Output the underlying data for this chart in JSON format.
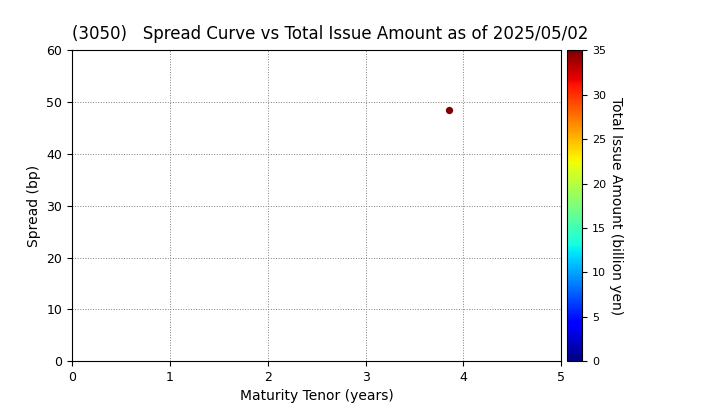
{
  "title": "(3050)   Spread Curve vs Total Issue Amount as of 2025/05/02",
  "xlabel": "Maturity Tenor (years)",
  "ylabel": "Spread (bp)",
  "colorbar_label": "Total Issue Amount (billion yen)",
  "xlim": [
    0,
    5
  ],
  "ylim": [
    0,
    60
  ],
  "xticks": [
    0,
    1,
    2,
    3,
    4,
    5
  ],
  "yticks": [
    0,
    10,
    20,
    30,
    40,
    50,
    60
  ],
  "colorbar_min": 0,
  "colorbar_max": 35,
  "colorbar_ticks": [
    0,
    5,
    10,
    15,
    20,
    25,
    30,
    35
  ],
  "scatter_x": [
    3.85
  ],
  "scatter_y": [
    48.5
  ],
  "scatter_values": [
    35.0
  ],
  "marker_size": 18,
  "background_color": "#ffffff",
  "title_fontsize": 12,
  "axis_fontsize": 10,
  "tick_fontsize": 9,
  "cbar_tick_fontsize": 8
}
